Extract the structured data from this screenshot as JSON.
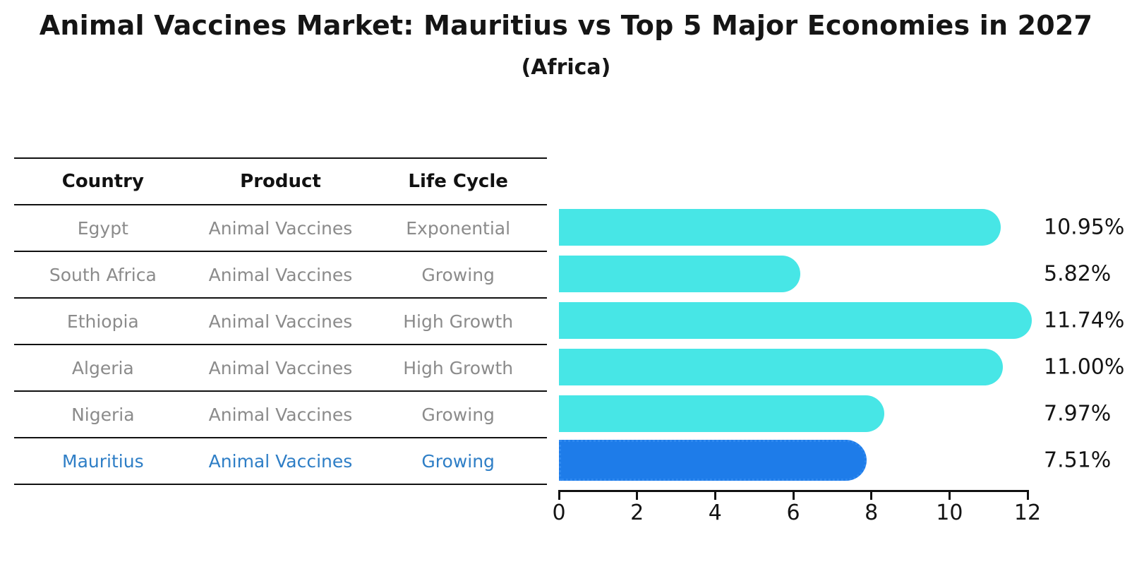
{
  "title": "Animal Vaccines Market: Mauritius vs Top 5 Major Economies in 2027",
  "subtitle": "(Africa)",
  "colors": {
    "bar_default": "#47e6e6",
    "bar_highlight": "#1e7ce9",
    "bar_highlight_edge": "#2f89f0",
    "highlight_text": "#2e7ec6",
    "table_text": "#8b8b8b",
    "line": "#111111"
  },
  "table": {
    "headers": [
      "Country",
      "Product",
      "Life Cycle"
    ],
    "rows": [
      {
        "country": "Egypt",
        "product": "Animal Vaccines",
        "life_cycle": "Exponential",
        "highlight": false
      },
      {
        "country": "South Africa",
        "product": "Animal Vaccines",
        "life_cycle": "Growing",
        "highlight": false
      },
      {
        "country": "Ethiopia",
        "product": "Animal Vaccines",
        "life_cycle": "High Growth",
        "highlight": false
      },
      {
        "country": "Algeria",
        "product": "Animal Vaccines",
        "life_cycle": "High Growth",
        "highlight": false
      },
      {
        "country": "Nigeria",
        "product": "Animal Vaccines",
        "life_cycle": "Growing",
        "highlight": false
      },
      {
        "country": "Mauritius",
        "product": "Animal Vaccines",
        "life_cycle": "Growing",
        "highlight": true
      }
    ]
  },
  "chart_data": {
    "type": "bar",
    "orientation": "horizontal",
    "title": "Animal Vaccines Market: Mauritius vs Top 5 Major Economies in 2027 (Africa)",
    "xlabel": "",
    "ylabel": "",
    "categories": [
      "Egypt",
      "South Africa",
      "Ethiopia",
      "Algeria",
      "Nigeria",
      "Mauritius"
    ],
    "values": [
      10.95,
      5.82,
      11.74,
      11.0,
      7.97,
      7.51
    ],
    "value_labels": [
      "10.95%",
      "5.82%",
      "11.74%",
      "11.00%",
      "7.97%",
      "7.51%"
    ],
    "highlight_index": 5,
    "xlim": [
      0,
      12
    ],
    "x_ticks": [
      0,
      2,
      4,
      6,
      8,
      10,
      12
    ],
    "grid": false,
    "legend": false
  }
}
